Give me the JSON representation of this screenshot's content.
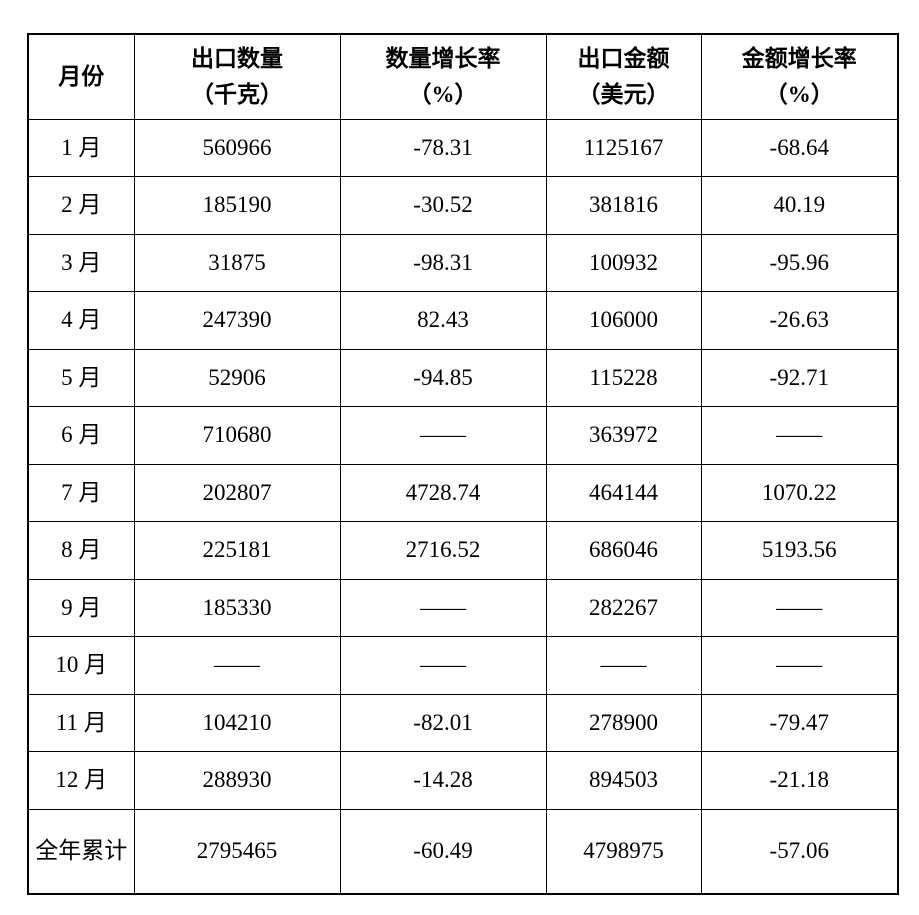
{
  "table": {
    "headers": [
      {
        "line1": "月份",
        "line2": ""
      },
      {
        "line1": "出口数量",
        "line2": "（千克）"
      },
      {
        "line1": "数量增长率",
        "line2": "（%）"
      },
      {
        "line1": "出口金额",
        "line2": "（美元）"
      },
      {
        "line1": "金额增长率",
        "line2": "（%）"
      }
    ],
    "rows": [
      [
        "1 月",
        "560966",
        "-78.31",
        "1125167",
        "-68.64"
      ],
      [
        "2 月",
        "185190",
        "-30.52",
        "381816",
        "40.19"
      ],
      [
        "3 月",
        "31875",
        "-98.31",
        "100932",
        "-95.96"
      ],
      [
        "4 月",
        "247390",
        "82.43",
        "106000",
        "-26.63"
      ],
      [
        "5 月",
        "52906",
        "-94.85",
        "115228",
        "-92.71"
      ],
      [
        "6 月",
        "710680",
        "——",
        "363972",
        "——"
      ],
      [
        "7 月",
        "202807",
        "4728.74",
        "464144",
        "1070.22"
      ],
      [
        "8 月",
        "225181",
        "2716.52",
        "686046",
        "5193.56"
      ],
      [
        "9 月",
        "185330",
        "——",
        "282267",
        "——"
      ],
      [
        "10 月",
        "——",
        "——",
        "——",
        "——"
      ],
      [
        "11 月",
        "104210",
        "-82.01",
        "278900",
        "-79.47"
      ],
      [
        "12 月",
        "288930",
        "-14.28",
        "894503",
        "-21.18"
      ],
      [
        "全年累计",
        "2795465",
        "-60.49",
        "4798975",
        "-57.06"
      ]
    ]
  },
  "colors": {
    "border": "#000000",
    "text": "#000000",
    "background": "#ffffff"
  }
}
